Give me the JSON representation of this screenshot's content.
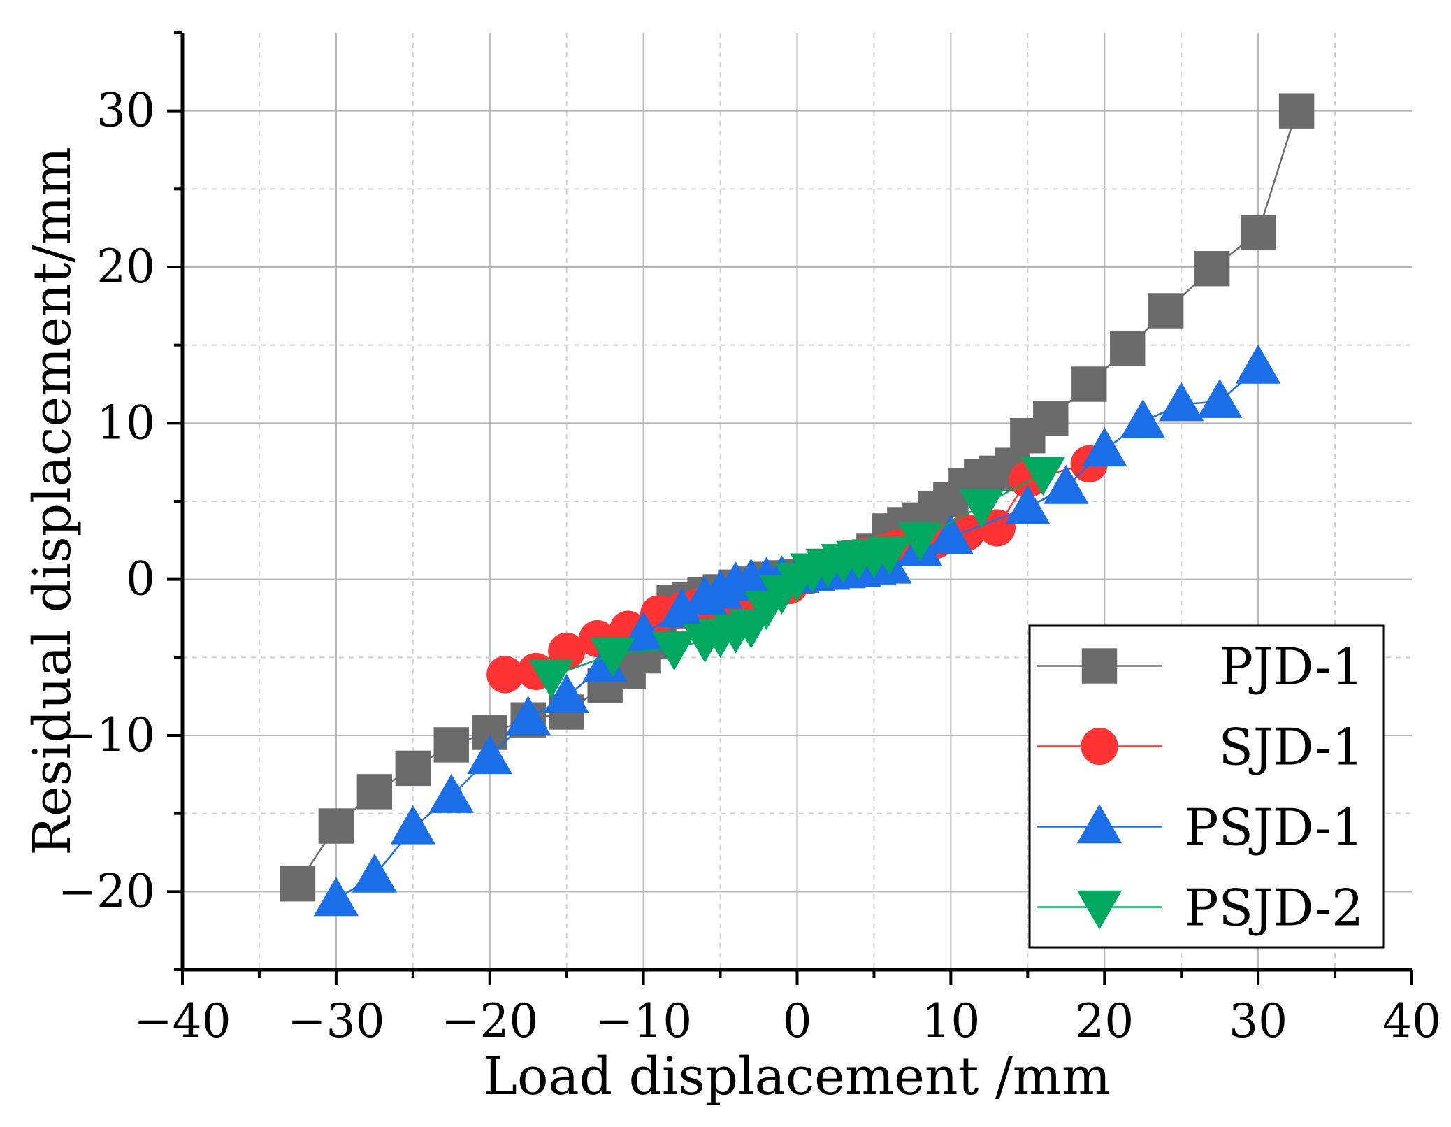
{
  "chart_data": {
    "type": "line",
    "title": "",
    "xlabel": "Load displacement /mm",
    "ylabel": "Residual displacement/mm",
    "xlim": [
      -40,
      40
    ],
    "ylim": [
      -25,
      35
    ],
    "xticks": [
      -40,
      -30,
      -20,
      -10,
      0,
      10,
      20,
      30,
      40
    ],
    "yticks": [
      -20,
      -10,
      0,
      10,
      20,
      30
    ],
    "xtick_labels": [
      "−40",
      "−30",
      "−20",
      "−10",
      "0",
      "10",
      "20",
      "30",
      "40"
    ],
    "ytick_labels": [
      "−20",
      "−10",
      "0",
      "10",
      "20",
      "30"
    ],
    "grid": true,
    "legend_position": "bottom-right",
    "series": [
      {
        "name": "PJD-1",
        "color": "#6b6b6b",
        "marker": "square",
        "x": [
          -32.5,
          -30,
          -27.5,
          -25,
          -22.5,
          -20,
          -17.5,
          -15,
          -12.5,
          -11,
          -10,
          -9,
          -8,
          -7,
          -6,
          -5,
          -4,
          -3,
          -2,
          -1,
          0,
          1,
          2,
          3,
          4,
          5,
          6,
          7,
          8,
          9,
          10,
          11,
          12,
          13,
          14,
          15,
          16.5,
          19,
          21.5,
          24,
          27,
          30,
          32.5
        ],
        "y": [
          -19.5,
          -15.8,
          -13.6,
          -12.1,
          -10.6,
          -9.8,
          -9.0,
          -8.5,
          -6.8,
          -5.9,
          -4.9,
          -4.0,
          -1.5,
          -1.3,
          -1.0,
          -0.8,
          -0.5,
          -0.3,
          0.0,
          0.1,
          0.2,
          0.5,
          0.8,
          1.1,
          1.4,
          1.8,
          3.1,
          3.5,
          3.8,
          4.5,
          5.1,
          6.0,
          6.6,
          6.8,
          7.3,
          9.2,
          10.3,
          12.5,
          14.8,
          17.2,
          19.9,
          22.2,
          30.0
        ]
      },
      {
        "name": "SJD-1",
        "color": "#ff3333",
        "marker": "circle",
        "x": [
          -19,
          -17,
          -15,
          -13,
          -11,
          -9,
          -7.5,
          -6.5,
          -5.5,
          -4.5,
          -3.5,
          -2.5,
          -1.5,
          -0.5,
          0.5,
          1.5,
          2.5,
          3.5,
          4.5,
          5.5,
          6.5,
          7.5,
          9,
          11,
          13,
          15,
          19
        ],
        "y": [
          -6.1,
          -5.9,
          -4.6,
          -3.8,
          -3.2,
          -2.2,
          -2.0,
          -1.8,
          -1.6,
          -1.4,
          -1.2,
          -1.0,
          -0.7,
          -0.4,
          0.3,
          0.7,
          1.0,
          1.3,
          1.5,
          1.7,
          2.0,
          2.3,
          2.5,
          3.0,
          3.3,
          6.4,
          7.4
        ]
      },
      {
        "name": "PSJD-1",
        "color": "#1a6fe8",
        "marker": "triangle-up",
        "x": [
          -30,
          -27.5,
          -25,
          -22.5,
          -20,
          -17.5,
          -15,
          -12.5,
          -10,
          -7.5,
          -6,
          -5,
          -4,
          -3,
          -2,
          -1,
          0,
          1,
          2,
          3,
          4,
          5,
          6,
          8,
          10,
          15,
          17.5,
          20,
          22.5,
          25,
          27.5,
          30
        ],
        "y": [
          -20.5,
          -19.0,
          -15.9,
          -13.9,
          -11.4,
          -8.9,
          -7.5,
          -5.5,
          -3.5,
          -2.0,
          -1.2,
          -0.8,
          -0.3,
          -0.1,
          0.0,
          0.1,
          0.2,
          0.3,
          0.4,
          0.5,
          0.6,
          0.7,
          0.8,
          1.9,
          2.7,
          4.6,
          5.9,
          8.3,
          10.1,
          11.2,
          11.4,
          13.6
        ]
      },
      {
        "name": "PSJD-2",
        "color": "#00a860",
        "marker": "triangle-down",
        "x": [
          -16,
          -12,
          -8,
          -6,
          -5,
          -4,
          -3,
          -2,
          -1,
          0,
          1,
          2,
          3,
          4,
          5,
          6,
          8,
          12,
          16
        ],
        "y": [
          -6.2,
          -4.8,
          -4.4,
          -3.9,
          -3.6,
          -3.3,
          -3.0,
          -1.8,
          -0.8,
          0.0,
          0.6,
          0.9,
          1.2,
          1.4,
          1.5,
          1.7,
          2.6,
          4.7,
          6.8
        ]
      }
    ]
  }
}
